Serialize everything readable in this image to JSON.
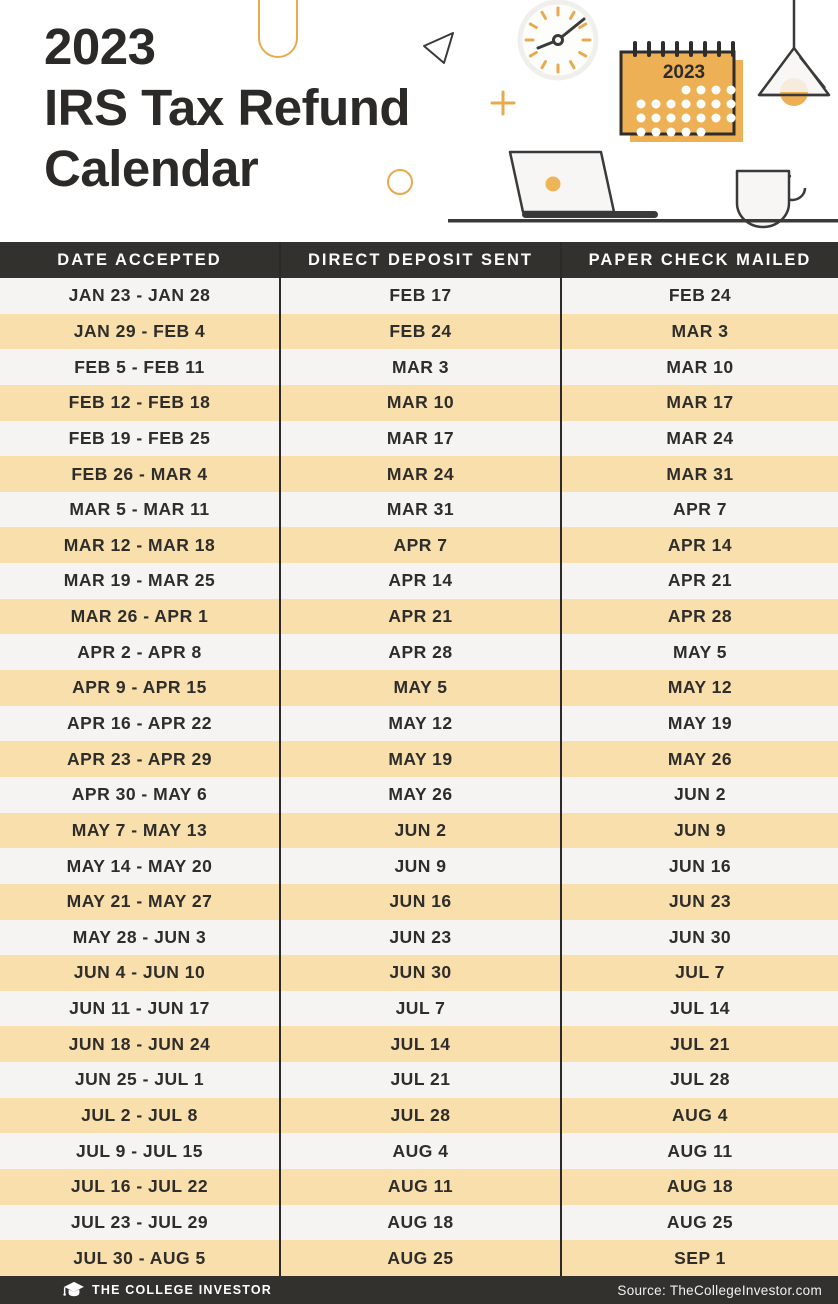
{
  "colors": {
    "accent_orange": "#e9a94d",
    "calendar_orange": "#edb054",
    "row_orange": "#f8dfab",
    "row_light": "#f5f4f3",
    "bar_dark": "#33312e",
    "text_dark": "#2b2a28"
  },
  "header": {
    "title_line1": "2023",
    "title_line2": "IRS Tax Refund",
    "title_line3": "Calendar",
    "calendar_icon_year": "2023"
  },
  "table": {
    "columns": [
      "DATE ACCEPTED",
      "DIRECT DEPOSIT SENT",
      "PAPER CHECK MAILED"
    ],
    "rows": [
      [
        "JAN 23 - JAN 28",
        "FEB 17",
        "FEB 24"
      ],
      [
        "JAN 29 - FEB 4",
        "FEB 24",
        "MAR 3"
      ],
      [
        "FEB 5 - FEB 11",
        "MAR 3",
        "MAR 10"
      ],
      [
        "FEB 12 - FEB 18",
        "MAR 10",
        "MAR 17"
      ],
      [
        "FEB 19 - FEB 25",
        "MAR 17",
        "MAR 24"
      ],
      [
        "FEB 26 - MAR 4",
        "MAR 24",
        "MAR 31"
      ],
      [
        "MAR 5 - MAR 11",
        "MAR 31",
        "APR 7"
      ],
      [
        "MAR 12 - MAR 18",
        "APR 7",
        "APR 14"
      ],
      [
        "MAR 19 - MAR 25",
        "APR 14",
        "APR 21"
      ],
      [
        "MAR 26 - APR 1",
        "APR 21",
        "APR 28"
      ],
      [
        "APR 2 - APR 8",
        "APR 28",
        "MAY 5"
      ],
      [
        "APR 9 - APR 15",
        "MAY 5",
        "MAY 12"
      ],
      [
        "APR 16 - APR 22",
        "MAY 12",
        "MAY 19"
      ],
      [
        "APR 23 - APR 29",
        "MAY 19",
        "MAY 26"
      ],
      [
        "APR 30 - MAY 6",
        "MAY 26",
        "JUN 2"
      ],
      [
        "MAY 7 - MAY 13",
        "JUN 2",
        "JUN 9"
      ],
      [
        "MAY 14 - MAY 20",
        "JUN 9",
        "JUN 16"
      ],
      [
        "MAY 21 - MAY 27",
        "JUN 16",
        "JUN 23"
      ],
      [
        "MAY 28 - JUN 3",
        "JUN 23",
        "JUN 30"
      ],
      [
        "JUN 4 - JUN 10",
        "JUN 30",
        "JUL 7"
      ],
      [
        "JUN 11 - JUN 17",
        "JUL 7",
        "JUL 14"
      ],
      [
        "JUN 18 - JUN 24",
        "JUL 14",
        "JUL 21"
      ],
      [
        "JUN 25 - JUL 1",
        "JUL 21",
        "JUL 28"
      ],
      [
        "JUL 2 - JUL 8",
        "JUL 28",
        "AUG 4"
      ],
      [
        "JUL 9 - JUL 15",
        "AUG 4",
        "AUG 11"
      ],
      [
        "JUL 16 - JUL 22",
        "AUG 11",
        "AUG 18"
      ],
      [
        "JUL 23 - JUL 29",
        "AUG 18",
        "AUG 25"
      ],
      [
        "JUL 30 - AUG 5",
        "AUG 25",
        "SEP 1"
      ]
    ]
  },
  "footer": {
    "brand": "THE COLLEGE INVESTOR",
    "source": "Source: TheCollegeInvestor.com"
  }
}
